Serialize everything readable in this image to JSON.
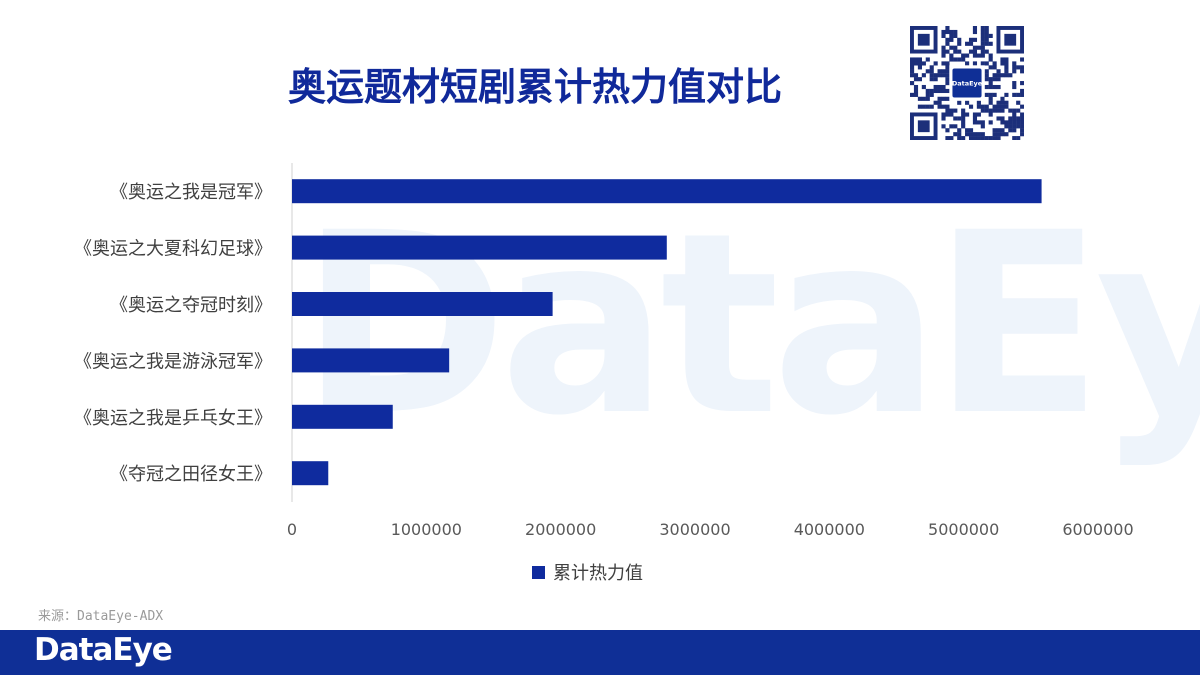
{
  "header": {
    "title": "奥运题材短剧累计热力值对比"
  },
  "qr_code": {
    "center_text": "DataEye"
  },
  "watermark": {
    "text": "DataEye"
  },
  "source": {
    "text": "来源：DataEye-ADX"
  },
  "footer": {
    "logo_text": "DataEye"
  },
  "colors": {
    "bar": "#0f2b9e",
    "title": "#10299a",
    "footer": "#0f2f96"
  },
  "chart_data": {
    "type": "bar",
    "orientation": "horizontal",
    "categories": [
      "《奥运之我是冠军》",
      "《奥运之大夏科幻足球》",
      "《奥运之夺冠时刻》",
      "《奥运之我是游泳冠军》",
      "《奥运之我是乒乓女王》",
      "《夺冠之田径女王》"
    ],
    "series": [
      {
        "name": "累计热力值",
        "values": [
          5580000,
          2790000,
          1940000,
          1170000,
          750000,
          270000
        ]
      }
    ],
    "xlim": [
      0,
      6000000
    ],
    "xticks": [
      "0",
      "1000000",
      "2000000",
      "3000000",
      "4000000",
      "5000000",
      "6000000"
    ],
    "grid": false,
    "legend": "bottom"
  }
}
